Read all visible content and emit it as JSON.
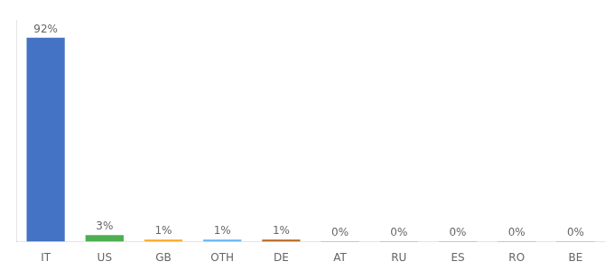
{
  "chart_data": {
    "type": "bar",
    "categories": [
      "IT",
      "US",
      "GB",
      "OTH",
      "DE",
      "AT",
      "RU",
      "ES",
      "RO",
      "BE"
    ],
    "values": [
      92,
      3,
      1,
      1,
      1,
      0.2,
      0.2,
      0.2,
      0.2,
      0.2
    ],
    "value_labels": [
      "92%",
      "3%",
      "1%",
      "1%",
      "1%",
      "0%",
      "0%",
      "0%",
      "0%",
      "0%"
    ],
    "colors": [
      "#4472c4",
      "#4caf50",
      "#ffa726",
      "#64b5f6",
      "#b5651d",
      "#4472c4",
      "#4472c4",
      "#4472c4",
      "#4472c4",
      "#4472c4"
    ],
    "ylim": [
      0,
      100
    ],
    "grid": false,
    "data_labels": true,
    "tick_labels": "x"
  }
}
